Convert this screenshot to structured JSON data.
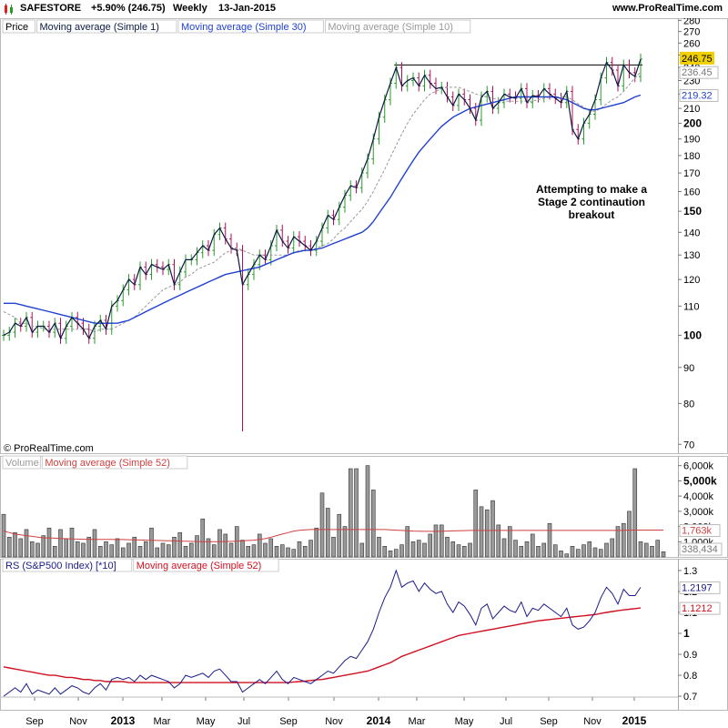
{
  "header": {
    "ticker": "SAFESTORE",
    "change": "+5.90% (246.75)",
    "period": "Weekly",
    "date": "13-Jan-2015",
    "site": "www.ProRealTime.com"
  },
  "price_panel": {
    "legend": [
      "Price",
      "Moving average (Simple 1)",
      "Moving average (Simple 30)",
      "Moving average (Simple 10)"
    ],
    "copyright": "© ProRealTime.com",
    "annotation": [
      "Attempting to make a",
      "Stage 2 continaution",
      "breakout"
    ],
    "last_labels": {
      "price": "246.75",
      "ma10": "236.45",
      "ma30": "219.32"
    }
  },
  "volume_panel": {
    "legend": [
      "Volume",
      "Moving average (Simple 52)"
    ],
    "last_labels": {
      "ma52": "1,763k",
      "volume": "338,434"
    }
  },
  "rs_panel": {
    "legend": [
      "RS (S&P500 Index) [*10]",
      "Moving average (Simple 52)"
    ],
    "last_labels": {
      "rs": "1.2197",
      "ma52": "1.1212"
    }
  },
  "colors": {
    "up": "#2a9a2a",
    "down": "#b0105a",
    "ma1": "#0a1a44",
    "ma30": "#2040d0",
    "ma10": "#999999",
    "vol": "#999999",
    "vol_ma": "#d04040",
    "rs": "#1a1a8a",
    "rs_ma": "#d01020",
    "axis_highlight": "#f0d000"
  },
  "chart_data": [
    {
      "type": "line",
      "panel": "price",
      "scale": "log",
      "x_ticks": [
        "Sep",
        "Nov",
        "2013",
        "Mar",
        "May",
        "Jul",
        "Sep",
        "Nov",
        "2014",
        "Mar",
        "May",
        "Jul",
        "Sep",
        "Nov",
        "2015"
      ],
      "y_ticks": [
        70,
        80,
        90,
        100,
        110,
        120,
        130,
        140,
        150,
        160,
        170,
        180,
        190,
        200,
        210,
        220,
        230,
        240,
        250,
        260,
        270,
        280
      ],
      "y_ticks_bold": [
        100,
        150,
        200
      ],
      "ylim": [
        68,
        282
      ],
      "resistance_level": 242,
      "series": [
        {
          "name": "Moving average (Simple 1)",
          "values": [
            100,
            101,
            104,
            103,
            106,
            101,
            103,
            103,
            101,
            104,
            99,
            103,
            106,
            104,
            102,
            99,
            103,
            105,
            102,
            110,
            112,
            116,
            120,
            118,
            125,
            122,
            126,
            125,
            124,
            126,
            118,
            123,
            128,
            128,
            131,
            134,
            132,
            139,
            142,
            137,
            133,
            132,
            118,
            122,
            126,
            130,
            128,
            134,
            141,
            136,
            133,
            138,
            136,
            134,
            132,
            136,
            142,
            148,
            146,
            152,
            158,
            163,
            162,
            170,
            178,
            190,
            204,
            216,
            228,
            240,
            226,
            230,
            232,
            226,
            234,
            228,
            224,
            225,
            218,
            212,
            220,
            216,
            210,
            202,
            218,
            222,
            210,
            214,
            220,
            218,
            217,
            224,
            214,
            219,
            218,
            224,
            220,
            217,
            214,
            222,
            196,
            190,
            200,
            206,
            216,
            232,
            244,
            238,
            226,
            242,
            236,
            233,
            246.75
          ]
        },
        {
          "name": "Moving average (Simple 10)",
          "values": [
            108,
            107,
            106,
            104,
            104,
            103,
            103,
            102,
            102,
            102,
            102,
            102,
            102,
            102,
            102,
            102,
            101,
            102,
            102,
            102,
            103,
            104,
            105,
            106,
            108,
            110,
            112,
            114,
            116,
            117,
            118,
            119,
            121,
            122,
            124,
            125,
            126,
            127,
            129,
            131,
            132,
            133,
            132,
            131,
            130,
            130,
            130,
            130,
            130,
            130,
            130,
            131,
            132,
            132,
            132,
            133,
            134,
            135,
            137,
            140,
            142,
            145,
            148,
            151,
            155,
            160,
            166,
            172,
            179,
            186,
            193,
            200,
            206,
            211,
            216,
            220,
            222,
            224,
            225,
            225,
            225,
            223,
            222,
            220,
            219,
            218,
            217,
            216,
            215,
            215,
            215,
            215,
            215,
            215,
            216,
            217,
            218,
            218,
            218,
            218,
            216,
            213,
            211,
            208,
            208,
            210,
            213,
            216,
            218,
            222,
            227,
            232,
            236.45
          ]
        },
        {
          "name": "Moving average (Simple 30)",
          "values": [
            111,
            111,
            111,
            110.5,
            110,
            109.5,
            109,
            108.5,
            108,
            107.5,
            107,
            106.5,
            106,
            105.5,
            105,
            104.5,
            104,
            104,
            104,
            104,
            104,
            104.5,
            105,
            106,
            107,
            108,
            109,
            110,
            111,
            112,
            113,
            114,
            115,
            116,
            117,
            118,
            119,
            120,
            121,
            122,
            122.5,
            123,
            123.5,
            124,
            124.5,
            125,
            126,
            127,
            128,
            129,
            130,
            131,
            131.5,
            132,
            132,
            132.5,
            133,
            134,
            135,
            136,
            137,
            138,
            139,
            140,
            142,
            145,
            149,
            153,
            157,
            162,
            167,
            172,
            177,
            182,
            186,
            190,
            194,
            198,
            201,
            204,
            206,
            208,
            210,
            211,
            212,
            213,
            214,
            215,
            216,
            217,
            218,
            218,
            218,
            218,
            218,
            218,
            218,
            218,
            217,
            216,
            214,
            212,
            210,
            209,
            209,
            210,
            211,
            212,
            213,
            214,
            216,
            218,
            219.32
          ]
        }
      ]
    },
    {
      "type": "bar",
      "panel": "volume",
      "y_ticks": [
        "1,000k",
        "2,000k",
        "3,000k",
        "4,000k",
        "5,000k",
        "6,000k"
      ],
      "y_tick_values": [
        1000,
        2000,
        3000,
        4000,
        5000,
        6000
      ],
      "ylim": [
        0,
        6400
      ],
      "series": [
        {
          "name": "Volume",
          "values": [
            2800,
            1300,
            1600,
            1200,
            1800,
            1000,
            900,
            1400,
            1900,
            700,
            1800,
            1200,
            1900,
            1000,
            900,
            1300,
            1800,
            700,
            1000,
            800,
            1200,
            600,
            900,
            1300,
            700,
            1000,
            1900,
            600,
            900,
            800,
            1300,
            1600,
            700,
            900,
            1400,
            2500,
            1200,
            800,
            1800,
            1500,
            900,
            2000,
            1100,
            700,
            800,
            1500,
            900,
            1200,
            700,
            800,
            600,
            500,
            1000,
            700,
            1100,
            1900,
            4200,
            3200,
            1300,
            2800,
            2000,
            5800,
            5800,
            900,
            6000,
            4400,
            1300,
            700,
            400,
            500,
            800,
            2000,
            1000,
            1100,
            900,
            1500,
            2100,
            2100,
            1300,
            1000,
            800,
            700,
            900,
            4400,
            3300,
            3100,
            3700,
            2100,
            1200,
            2000,
            1100,
            700,
            1000,
            1500,
            700,
            900,
            2200,
            800,
            400,
            200,
            700,
            500,
            800,
            1000,
            600,
            500,
            900,
            1200,
            2000,
            2200,
            3000,
            5800,
            1000,
            900,
            700,
            1100,
            338.434
          ]
        },
        {
          "name": "Moving average (Simple 52)",
          "values": [
            1700,
            1600,
            1500,
            1450,
            1400,
            1350,
            1300,
            1250,
            1250,
            1230,
            1200,
            1200,
            1180,
            1170,
            1160,
            1160,
            1150,
            1150,
            1150,
            1150,
            1140,
            1140,
            1130,
            1120,
            1110,
            1100,
            1090,
            1080,
            1070,
            1060,
            1050,
            1040,
            1030,
            1020,
            1010,
            1000,
            1000,
            1000,
            1000,
            1010,
            1020,
            1030,
            1050,
            1080,
            1100,
            1150,
            1200,
            1300,
            1400,
            1500,
            1600,
            1700,
            1750,
            1780,
            1800,
            1800,
            1800,
            1800,
            1800,
            1800,
            1800,
            1800,
            1800,
            1800,
            1800,
            1800,
            1800,
            1800,
            1780,
            1760,
            1740,
            1720,
            1700,
            1690,
            1680,
            1680,
            1680,
            1690,
            1700,
            1710,
            1720,
            1730,
            1740,
            1740,
            1740,
            1740,
            1740,
            1740,
            1740,
            1740,
            1740,
            1740,
            1740,
            1740,
            1740,
            1740,
            1740,
            1740,
            1740,
            1740,
            1740,
            1740,
            1740,
            1740,
            1740,
            1740,
            1740,
            1740,
            1740,
            1750,
            1760,
            1763,
            1763,
            1763,
            1763,
            1763,
            1763
          ]
        }
      ]
    },
    {
      "type": "line",
      "panel": "rs",
      "x_ticks": [
        "Sep",
        "Nov",
        "2013",
        "Mar",
        "May",
        "Jul",
        "Sep",
        "Nov",
        "2014",
        "Mar",
        "May",
        "Jul",
        "Sep",
        "Nov",
        "2015"
      ],
      "y_ticks": [
        0.7,
        0.8,
        0.9,
        1,
        1.1,
        1.2,
        1.3
      ],
      "ylim": [
        0.67,
        1.33
      ],
      "series": [
        {
          "name": "RS (S&P500 Index) [*10]",
          "values": [
            0.7,
            0.72,
            0.74,
            0.72,
            0.76,
            0.71,
            0.73,
            0.72,
            0.71,
            0.74,
            0.71,
            0.73,
            0.75,
            0.74,
            0.72,
            0.71,
            0.74,
            0.76,
            0.73,
            0.78,
            0.79,
            0.78,
            0.79,
            0.77,
            0.8,
            0.78,
            0.8,
            0.79,
            0.78,
            0.77,
            0.74,
            0.76,
            0.8,
            0.79,
            0.8,
            0.81,
            0.79,
            0.82,
            0.83,
            0.8,
            0.77,
            0.77,
            0.72,
            0.74,
            0.76,
            0.78,
            0.76,
            0.79,
            0.82,
            0.78,
            0.76,
            0.79,
            0.78,
            0.77,
            0.76,
            0.78,
            0.8,
            0.82,
            0.81,
            0.84,
            0.87,
            0.89,
            0.88,
            0.92,
            0.96,
            1.02,
            1.1,
            1.17,
            1.22,
            1.3,
            1.22,
            1.24,
            1.25,
            1.2,
            1.24,
            1.21,
            1.19,
            1.2,
            1.14,
            1.1,
            1.15,
            1.13,
            1.09,
            1.04,
            1.12,
            1.14,
            1.07,
            1.1,
            1.13,
            1.11,
            1.1,
            1.15,
            1.08,
            1.12,
            1.11,
            1.14,
            1.12,
            1.1,
            1.08,
            1.12,
            1.04,
            1.02,
            1.03,
            1.06,
            1.1,
            1.17,
            1.22,
            1.19,
            1.14,
            1.21,
            1.18,
            1.18,
            1.2197
          ]
        },
        {
          "name": "Moving average (Simple 52)",
          "values": [
            0.84,
            0.835,
            0.83,
            0.825,
            0.82,
            0.815,
            0.81,
            0.805,
            0.8,
            0.8,
            0.795,
            0.79,
            0.79,
            0.785,
            0.78,
            0.78,
            0.775,
            0.775,
            0.77,
            0.77,
            0.77,
            0.77,
            0.765,
            0.765,
            0.765,
            0.765,
            0.765,
            0.765,
            0.765,
            0.765,
            0.765,
            0.765,
            0.765,
            0.765,
            0.765,
            0.765,
            0.765,
            0.765,
            0.765,
            0.765,
            0.765,
            0.765,
            0.765,
            0.765,
            0.765,
            0.765,
            0.765,
            0.765,
            0.765,
            0.765,
            0.765,
            0.768,
            0.77,
            0.772,
            0.775,
            0.778,
            0.78,
            0.785,
            0.79,
            0.795,
            0.8,
            0.805,
            0.81,
            0.815,
            0.82,
            0.83,
            0.84,
            0.85,
            0.86,
            0.875,
            0.89,
            0.9,
            0.91,
            0.92,
            0.93,
            0.94,
            0.95,
            0.96,
            0.97,
            0.98,
            0.99,
            0.995,
            1,
            1.005,
            1.01,
            1.015,
            1.02,
            1.025,
            1.03,
            1.035,
            1.04,
            1.045,
            1.05,
            1.055,
            1.06,
            1.063,
            1.066,
            1.069,
            1.072,
            1.075,
            1.078,
            1.081,
            1.084,
            1.087,
            1.09,
            1.095,
            1.1,
            1.104,
            1.108,
            1.112,
            1.115,
            1.118,
            1.1212
          ]
        }
      ]
    }
  ]
}
